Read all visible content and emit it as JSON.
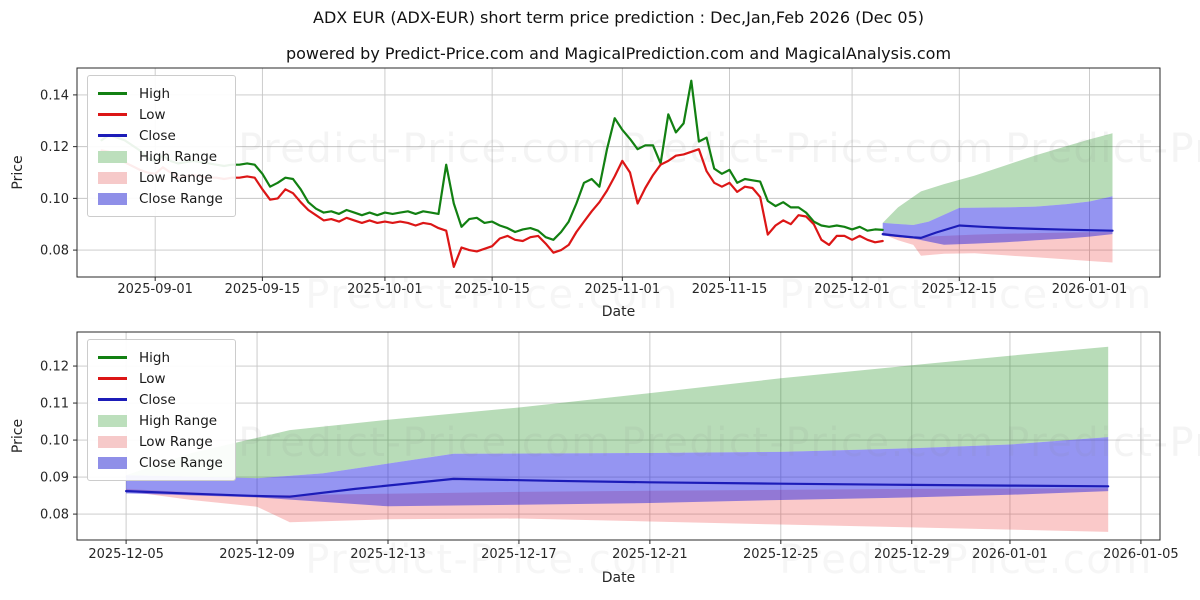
{
  "title": "ADX EUR (ADX-EUR) short term price prediction : Dec,Jan,Feb 2026 (Dec 05)",
  "subtitle": "powered by Predict-Price.com and MagicalPrediction.com and MagicalAnalysis.com",
  "watermark": {
    "text": "Predict-Price.com"
  },
  "colors": {
    "high": "#128012",
    "low": "#dc1616",
    "close": "#1c1cb8",
    "high_range_fill": "rgba(0,128,0,0.28)",
    "low_range_fill": "rgba(235,40,40,0.25)",
    "close_range_fill": "rgba(25,25,227,0.46)",
    "high_range_legend": "#bcdfbc",
    "low_range_legend": "#f6c9c9",
    "close_range_legend": "#8f8fe8",
    "grid": "#c6c6c6",
    "spine": "#2a2a2a",
    "text": "#262626",
    "watermark": "#8a8a8a"
  },
  "legend": {
    "items": [
      {
        "label": "High",
        "swatch": "line",
        "color_key": "high"
      },
      {
        "label": "Low",
        "swatch": "line",
        "color_key": "low"
      },
      {
        "label": "Close",
        "swatch": "line",
        "color_key": "close"
      },
      {
        "label": "High Range",
        "swatch": "patch",
        "color_key": "high_range_legend"
      },
      {
        "label": "Low Range",
        "swatch": "patch",
        "color_key": "low_range_legend"
      },
      {
        "label": "Close Range",
        "swatch": "patch",
        "color_key": "close_range_legend"
      }
    ]
  },
  "forecast": {
    "close": [
      [
        "2025-12-05",
        0.0862
      ],
      [
        "2025-12-07",
        0.0855
      ],
      [
        "2025-12-09",
        0.0849
      ],
      [
        "2025-12-10",
        0.0847
      ],
      [
        "2025-12-12",
        0.0868
      ],
      [
        "2025-12-15",
        0.0895
      ],
      [
        "2025-12-18",
        0.089
      ],
      [
        "2025-12-21",
        0.0886
      ],
      [
        "2025-12-25",
        0.0882
      ],
      [
        "2025-12-29",
        0.0879
      ],
      [
        "2026-01-01",
        0.0877
      ],
      [
        "2026-01-04",
        0.0875
      ]
    ],
    "close_range_top": [
      [
        "2025-12-05",
        0.0905
      ],
      [
        "2025-12-09",
        0.0897
      ],
      [
        "2025-12-11",
        0.091
      ],
      [
        "2025-12-15",
        0.0963
      ],
      [
        "2025-12-21",
        0.0965
      ],
      [
        "2025-12-25",
        0.0968
      ],
      [
        "2025-12-29",
        0.0978
      ],
      [
        "2026-01-01",
        0.0988
      ],
      [
        "2026-01-04",
        0.1008
      ]
    ],
    "close_range_bottom": [
      [
        "2025-12-05",
        0.0856
      ],
      [
        "2025-12-09",
        0.0845
      ],
      [
        "2025-12-13",
        0.0821
      ],
      [
        "2025-12-17",
        0.0825
      ],
      [
        "2025-12-21",
        0.083
      ],
      [
        "2025-12-25",
        0.0838
      ],
      [
        "2025-12-29",
        0.0845
      ],
      [
        "2026-01-01",
        0.0852
      ],
      [
        "2026-01-04",
        0.0862
      ]
    ],
    "high_range_top": [
      [
        "2025-12-05",
        0.0905
      ],
      [
        "2025-12-07",
        0.0965
      ],
      [
        "2025-12-10",
        0.1027
      ],
      [
        "2025-12-13",
        0.1055
      ],
      [
        "2025-12-17",
        0.1088
      ],
      [
        "2025-12-21",
        0.1127
      ],
      [
        "2025-12-25",
        0.1167
      ],
      [
        "2025-12-29",
        0.1202
      ],
      [
        "2026-01-01",
        0.1228
      ],
      [
        "2026-01-04",
        0.1252
      ]
    ],
    "low_range_top": [
      [
        "2025-12-05",
        0.0868
      ],
      [
        "2025-12-09",
        0.085
      ],
      [
        "2025-12-13",
        0.0855
      ],
      [
        "2025-12-17",
        0.086
      ],
      [
        "2025-12-21",
        0.0863
      ],
      [
        "2025-12-29",
        0.0868
      ],
      [
        "2026-01-04",
        0.087
      ]
    ],
    "low_range_bottom": [
      [
        "2025-12-05",
        0.0862
      ],
      [
        "2025-12-07",
        0.0838
      ],
      [
        "2025-12-09",
        0.082
      ],
      [
        "2025-12-10",
        0.0778
      ],
      [
        "2025-12-13",
        0.0786
      ],
      [
        "2025-12-17",
        0.0788
      ],
      [
        "2025-12-21",
        0.078
      ],
      [
        "2025-12-25",
        0.0772
      ],
      [
        "2025-12-29",
        0.0764
      ],
      [
        "2026-01-01",
        0.0758
      ],
      [
        "2026-01-04",
        0.0752
      ]
    ]
  },
  "chart_data": [
    {
      "type": "line",
      "name": "price-history-with-forecast",
      "xlabel": "Date",
      "ylabel": "Price",
      "xlim": [
        "2025-08-21T19:00",
        "2026-01-10T05:00"
      ],
      "ylim": [
        0.0696,
        0.1504
      ],
      "x_ticks": [
        "2025-09-01",
        "2025-09-15",
        "2025-10-01",
        "2025-10-15",
        "2025-11-01",
        "2025-11-15",
        "2025-12-01",
        "2025-12-15",
        "2026-01-01"
      ],
      "y_ticks": [
        "0.08",
        "0.10",
        "0.12",
        "0.14"
      ],
      "grid": true,
      "legend_position": "upper left",
      "series": [
        {
          "name": "High",
          "color_key": "high",
          "daily_start": "2025-08-25",
          "daily": [
            0.1225,
            0.1245,
            0.1235,
            0.1225,
            0.1205,
            0.1185,
            0.1155,
            0.1145,
            0.1165,
            0.1145,
            0.1135,
            0.114,
            0.1145,
            0.114,
            0.1135,
            0.113,
            0.1125,
            0.113,
            0.113,
            0.1135,
            0.113,
            0.1095,
            0.1045,
            0.106,
            0.108,
            0.1075,
            0.1035,
            0.0985,
            0.096,
            0.0945,
            0.095,
            0.094,
            0.0955,
            0.0945,
            0.0935,
            0.0945,
            0.0935,
            0.0945,
            0.094,
            0.0945,
            0.095,
            0.094,
            0.095,
            0.0945,
            0.094,
            0.113,
            0.098,
            0.089,
            0.092,
            0.0925,
            0.0905,
            0.091,
            0.0895,
            0.0885,
            0.087,
            0.088,
            0.0885,
            0.0875,
            0.085,
            0.084,
            0.087,
            0.091,
            0.098,
            0.106,
            0.1075,
            0.1045,
            0.119,
            0.131,
            0.1265,
            0.123,
            0.119,
            0.1205,
            0.1205,
            0.1135,
            0.1325,
            0.1255,
            0.129,
            0.1455,
            0.122,
            0.1235,
            0.1115,
            0.1095,
            0.111,
            0.106,
            0.1075,
            0.107,
            0.1065,
            0.099,
            0.097,
            0.0985,
            0.0965,
            0.0965,
            0.0945,
            0.091,
            0.0895,
            0.089,
            0.0895,
            0.089,
            0.088,
            0.089,
            0.0875,
            0.088,
            0.0878
          ]
        },
        {
          "name": "Low",
          "color_key": "low",
          "daily_start": "2025-08-25",
          "daily": [
            0.1185,
            0.118,
            0.116,
            0.114,
            0.1125,
            0.111,
            0.11,
            0.1095,
            0.112,
            0.11,
            0.108,
            0.1085,
            0.109,
            0.1085,
            0.108,
            0.108,
            0.1075,
            0.108,
            0.108,
            0.1085,
            0.108,
            0.1035,
            0.0995,
            0.1,
            0.1035,
            0.102,
            0.0985,
            0.0955,
            0.0935,
            0.0915,
            0.092,
            0.091,
            0.0925,
            0.0915,
            0.0905,
            0.0915,
            0.0905,
            0.091,
            0.0905,
            0.091,
            0.0905,
            0.0895,
            0.0905,
            0.09,
            0.0885,
            0.0875,
            0.0735,
            0.081,
            0.08,
            0.0795,
            0.0805,
            0.0815,
            0.0845,
            0.0855,
            0.084,
            0.0835,
            0.085,
            0.0855,
            0.0825,
            0.079,
            0.08,
            0.082,
            0.087,
            0.091,
            0.095,
            0.0985,
            0.103,
            0.1085,
            0.1145,
            0.11,
            0.098,
            0.104,
            0.109,
            0.113,
            0.1145,
            0.1165,
            0.117,
            0.118,
            0.119,
            0.1105,
            0.106,
            0.1045,
            0.106,
            0.1025,
            0.1045,
            0.104,
            0.1005,
            0.086,
            0.0895,
            0.0915,
            0.09,
            0.0935,
            0.093,
            0.09,
            0.084,
            0.082,
            0.0855,
            0.0855,
            0.084,
            0.0855,
            0.084,
            0.083,
            0.0835
          ]
        },
        {
          "name": "Close",
          "color_key": "close",
          "points_ref": "close"
        }
      ],
      "bands": [
        {
          "name": "High Range",
          "fill_key": "high_range_fill",
          "upper_ref": "high_range_top",
          "lower_ref": "close_range_top"
        },
        {
          "name": "Low Range",
          "fill_key": "low_range_fill",
          "upper_ref": "low_range_top",
          "lower_ref": "low_range_bottom"
        },
        {
          "name": "Close Range",
          "fill_key": "close_range_fill",
          "upper_ref": "close_range_top",
          "lower_ref": "close_range_bottom"
        }
      ]
    },
    {
      "type": "line",
      "name": "forecast-detail",
      "xlabel": "Date",
      "ylabel": "Price",
      "xlim": [
        "2025-12-03T12:00",
        "2026-01-05T14:00"
      ],
      "ylim": [
        0.073,
        0.1292
      ],
      "x_ticks": [
        "2025-12-05",
        "2025-12-09",
        "2025-12-13",
        "2025-12-17",
        "2025-12-21",
        "2025-12-25",
        "2025-12-29",
        "2026-01-01",
        "2026-01-05"
      ],
      "y_ticks": [
        "0.08",
        "0.09",
        "0.10",
        "0.11",
        "0.12"
      ],
      "grid": true,
      "legend_position": "upper left",
      "series": [
        {
          "name": "Close",
          "color_key": "close",
          "points_ref": "close"
        }
      ],
      "bands": [
        {
          "name": "High Range",
          "fill_key": "high_range_fill",
          "upper_ref": "high_range_top",
          "lower_ref": "close_range_top"
        },
        {
          "name": "Low Range",
          "fill_key": "low_range_fill",
          "upper_ref": "low_range_top",
          "lower_ref": "low_range_bottom"
        },
        {
          "name": "Close Range",
          "fill_key": "close_range_fill",
          "upper_ref": "close_range_top",
          "lower_ref": "close_range_bottom"
        }
      ]
    }
  ]
}
